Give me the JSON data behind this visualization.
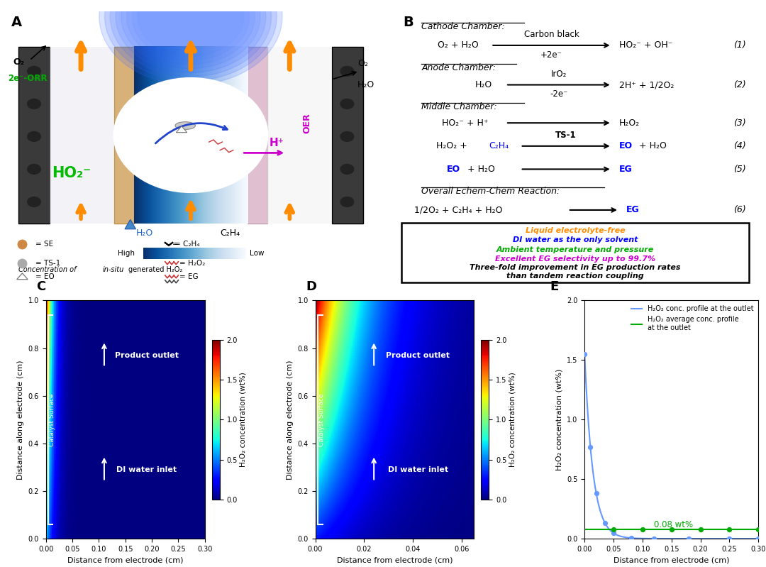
{
  "panel_B": {
    "box_lines": [
      "Liquid electrolyte-free",
      "DI water as the only solvent",
      "Ambient temperature and pressure",
      "Excellent EG selectivity up to 99.7%",
      "Three-fold improvement in EG production rates",
      "than tandem reaction coupling"
    ],
    "box_colors": [
      "#FF8C00",
      "#0000FF",
      "#00AA00",
      "#CC00CC",
      "#000000",
      "#000000"
    ]
  },
  "panel_C": {
    "xlabel": "Distance from electrode (cm)",
    "ylabel": "Distance along electrode (cm)",
    "colorbar_label": "H₂O₂ concentration (wt%)",
    "xlim": [
      0,
      0.3
    ],
    "ylim": [
      0,
      1.0
    ],
    "xticks": [
      0,
      0.05,
      0.1,
      0.15,
      0.2,
      0.25,
      0.3
    ],
    "yticks": [
      0,
      0.2,
      0.4,
      0.6,
      0.8,
      1.0
    ],
    "cticks": [
      0,
      0.5,
      1.0,
      1.5,
      2.0
    ],
    "text_outlet": "Product outlet",
    "text_inlet": "DI water inlet",
    "text_catalyst": "Catalyst Surface",
    "decay_rate": 80
  },
  "panel_D": {
    "xlabel": "Distance from electrode (cm)",
    "ylabel": "Distance along electrode (cm)",
    "colorbar_label": "H₂O₂ concentration (wt%)",
    "xlim": [
      0,
      0.065
    ],
    "ylim": [
      0,
      1.0
    ],
    "xticks": [
      0,
      0.02,
      0.04,
      0.06
    ],
    "yticks": [
      0,
      0.2,
      0.4,
      0.6,
      0.8,
      1.0
    ],
    "cticks": [
      0,
      0.5,
      1.0,
      1.5,
      2.0
    ],
    "text_outlet": "Product outlet",
    "text_inlet": "DI water inlet",
    "text_catalyst": "Catalyst Surface",
    "decay_rate": 55
  },
  "panel_E": {
    "xlabel": "Distance from electrode (cm)",
    "ylabel": "H₂O₂ concentration (wt%)",
    "xlim": [
      0,
      0.3
    ],
    "ylim": [
      0,
      2.0
    ],
    "xticks": [
      0,
      0.05,
      0.1,
      0.15,
      0.2,
      0.25,
      0.3
    ],
    "yticks": [
      0,
      0.5,
      1.0,
      1.5,
      2.0
    ],
    "line1_color": "#6699FF",
    "line2_color": "#00AA00",
    "avg_value": 0.08,
    "legend1": "H₂O₂ conc. profile at the outlet",
    "legend2": "H₂O₂ average conc. profile\nat the outlet",
    "annotation": "0.08 wt%"
  }
}
